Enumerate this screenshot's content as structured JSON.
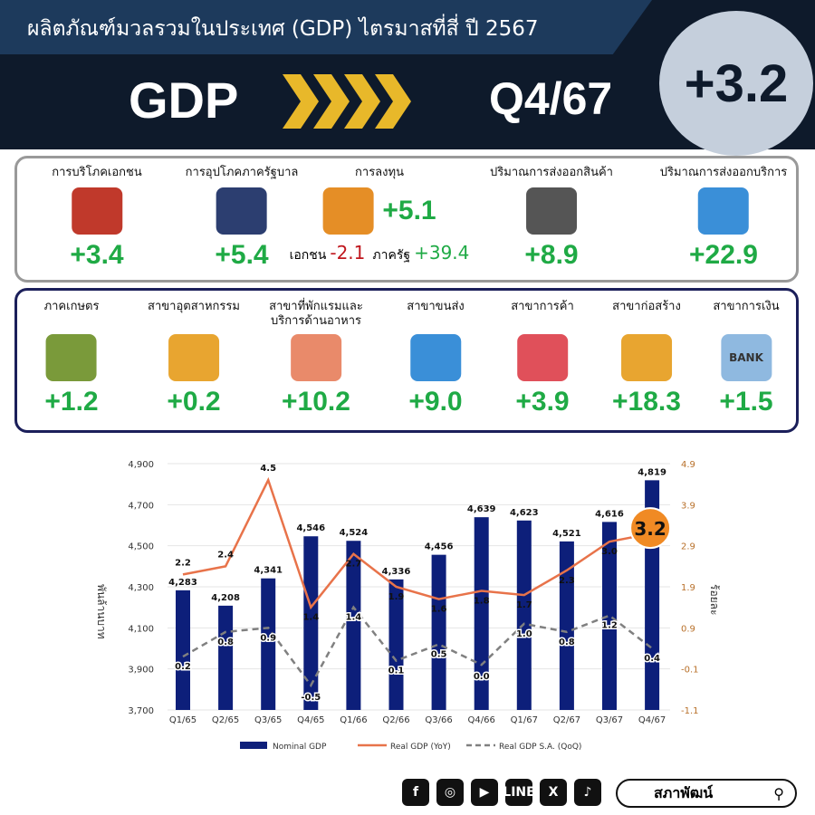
{
  "header": {
    "title": "ผลิตภัณฑ์มวลรวมในประเทศ (GDP) ไตรมาสที่สี่ ปี 2567",
    "gdp_label": "GDP",
    "quarter": "Q4/67",
    "headline_value": "+3.2"
  },
  "demand": [
    {
      "label": "การบริโภคเอกชน",
      "value": "+3.4",
      "icon": "house-icon",
      "color": "#c0392b"
    },
    {
      "label": "การอุปโภคภาครัฐบาล",
      "value": "+5.4",
      "icon": "government-building-icon",
      "color": "#2c3e70"
    },
    {
      "label": "การลงทุน",
      "value": "+5.1",
      "icon": "investment-money-bag-icon",
      "color": "#e58e26",
      "private_label": "เอกชน",
      "private_value": "-2.1",
      "public_label": "ภาครัฐ",
      "public_value": "+39.4"
    },
    {
      "label": "ปริมาณการส่งออกสินค้า",
      "value": "+8.9",
      "icon": "cargo-ship-icon",
      "color": "#555"
    },
    {
      "label": "ปริมาณการส่งออกบริการ",
      "value": "+22.9",
      "icon": "service-agent-icon",
      "color": "#3a8fd8"
    }
  ],
  "sectors": [
    {
      "label": "ภาคเกษตร",
      "value": "+1.2",
      "icon": "tractor-farm-icon",
      "color": "#7a9a3a"
    },
    {
      "label": "สาขาอุตสาหกรรม",
      "value": "+0.2",
      "icon": "factory-icon",
      "color": "#e8a530"
    },
    {
      "label": "สาขาที่พักแรมและ",
      "label2": "บริการด้านอาหาร",
      "value": "+10.2",
      "icon": "hotel-icon",
      "color": "#e98a6a"
    },
    {
      "label": "สาขาขนส่ง",
      "value": "+9.0",
      "icon": "transport-icon",
      "color": "#3a8fd8"
    },
    {
      "label": "สาขาการค้า",
      "value": "+3.9",
      "icon": "shopping-cart-icon",
      "color": "#e0505a"
    },
    {
      "label": "สาขาก่อสร้าง",
      "value": "+18.3",
      "icon": "construction-crane-icon",
      "color": "#e8a530"
    },
    {
      "label": "สาขาการเงิน",
      "value": "+1.5",
      "icon": "bank-icon",
      "color": "#8fb9e0",
      "text": "BANK"
    }
  ],
  "chart_data": {
    "type": "bar+line",
    "categories": [
      "Q1/65",
      "Q2/65",
      "Q3/65",
      "Q4/65",
      "Q1/66",
      "Q2/66",
      "Q3/66",
      "Q4/66",
      "Q1/67",
      "Q2/67",
      "Q3/67",
      "Q4/67"
    ],
    "series": [
      {
        "name": "Nominal GDP",
        "type": "bar",
        "axis": "left",
        "color": "#0d1f7a",
        "values": [
          4283,
          4208,
          4341,
          4546,
          4524,
          4336,
          4456,
          4639,
          4623,
          4521,
          4616,
          4819
        ],
        "labels": [
          "4,283",
          "4,208",
          "4,341",
          "4,546",
          "4,524",
          "4,336",
          "4,456",
          "4,639",
          "4,623",
          "4,521",
          "4,616",
          "4,819"
        ]
      },
      {
        "name": "Real GDP (YoY)",
        "type": "line",
        "axis": "right",
        "color": "#e8734a",
        "values": [
          2.2,
          2.4,
          4.5,
          1.4,
          2.7,
          1.9,
          1.6,
          1.8,
          1.7,
          2.3,
          3.0,
          3.2
        ]
      },
      {
        "name": "Real GDP S.A. (QoQ)",
        "type": "dashed-line",
        "axis": "right",
        "color": "#808080",
        "values": [
          0.2,
          0.8,
          0.9,
          -0.5,
          1.4,
          0.1,
          0.5,
          0.0,
          1.0,
          0.8,
          1.2,
          0.4
        ]
      }
    ],
    "ylabel": "พันล้านบาท",
    "y2label": "ร้อยละ",
    "ylim": [
      3700,
      4900
    ],
    "yticks": [
      "3,700",
      "3,900",
      "4,100",
      "4,300",
      "4,500",
      "4,700",
      "4,900"
    ],
    "y2lim": [
      -1.1,
      4.9
    ],
    "y2ticks": [
      "-1.1",
      "-0.1",
      "0.9",
      "1.9",
      "2.9",
      "3.9",
      "4.9"
    ],
    "highlight": "3.2",
    "highlight_color": "#f08a24",
    "legend": "bottom",
    "grid": true
  },
  "footer": {
    "socials": [
      "f",
      "◎",
      "▶",
      "LINE",
      "X",
      "♪"
    ],
    "search_label": "สภาพัฒน์"
  }
}
